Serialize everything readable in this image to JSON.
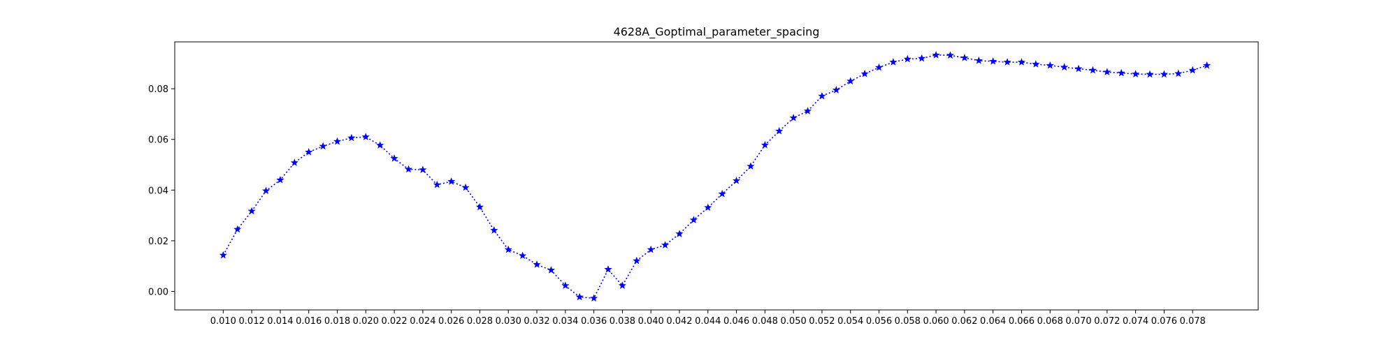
{
  "chart_data": {
    "type": "line",
    "title": "4628A_Goptimal_parameter_spacing",
    "xlabel": "",
    "ylabel": "",
    "xlim": [
      0.0066,
      0.0826
    ],
    "ylim": [
      -0.0073,
      0.0985
    ],
    "grid": false,
    "marker": "star",
    "line_style": "dotted",
    "color": "#0000ff",
    "x_ticks": [
      "0.010",
      "0.012",
      "0.014",
      "0.016",
      "0.018",
      "0.020",
      "0.022",
      "0.024",
      "0.026",
      "0.028",
      "0.030",
      "0.032",
      "0.034",
      "0.036",
      "0.038",
      "0.040",
      "0.042",
      "0.044",
      "0.046",
      "0.048",
      "0.050",
      "0.052",
      "0.054",
      "0.056",
      "0.058",
      "0.060",
      "0.062",
      "0.064",
      "0.066",
      "0.068",
      "0.070",
      "0.072",
      "0.074",
      "0.076",
      "0.078"
    ],
    "y_ticks": [
      "0.00",
      "0.02",
      "0.04",
      "0.06",
      "0.08"
    ],
    "x": [
      0.01,
      0.011,
      0.012,
      0.013,
      0.014,
      0.015,
      0.016,
      0.017,
      0.018,
      0.019,
      0.02,
      0.021,
      0.022,
      0.023,
      0.024,
      0.025,
      0.026,
      0.027,
      0.028,
      0.029,
      0.03,
      0.031,
      0.032,
      0.033,
      0.034,
      0.035,
      0.036,
      0.037,
      0.038,
      0.039,
      0.04,
      0.041,
      0.042,
      0.043,
      0.044,
      0.045,
      0.046,
      0.047,
      0.048,
      0.049,
      0.05,
      0.051,
      0.052,
      0.053,
      0.054,
      0.055,
      0.056,
      0.057,
      0.058,
      0.059,
      0.06,
      0.061,
      0.062,
      0.063,
      0.064,
      0.065,
      0.066,
      0.067,
      0.068,
      0.069,
      0.07,
      0.071,
      0.072,
      0.073,
      0.074,
      0.075,
      0.076,
      0.077,
      0.078,
      0.079
    ],
    "y": [
      0.0143,
      0.0245,
      0.0317,
      0.0397,
      0.044,
      0.0508,
      0.055,
      0.0573,
      0.0592,
      0.0606,
      0.061,
      0.0577,
      0.0525,
      0.0482,
      0.048,
      0.0421,
      0.0434,
      0.041,
      0.0333,
      0.0241,
      0.0165,
      0.0141,
      0.0106,
      0.0084,
      0.0023,
      -0.0022,
      -0.0027,
      0.0087,
      0.0023,
      0.0121,
      0.0165,
      0.0183,
      0.0227,
      0.0282,
      0.0331,
      0.0385,
      0.0437,
      0.0494,
      0.0578,
      0.0633,
      0.0685,
      0.0712,
      0.0771,
      0.0795,
      0.083,
      0.0859,
      0.0884,
      0.0905,
      0.0917,
      0.092,
      0.0933,
      0.0932,
      0.0922,
      0.0911,
      0.0908,
      0.0905,
      0.0905,
      0.0897,
      0.0892,
      0.0885,
      0.0879,
      0.0873,
      0.0866,
      0.0862,
      0.0858,
      0.0857,
      0.0857,
      0.086,
      0.0873,
      0.0892
    ]
  }
}
